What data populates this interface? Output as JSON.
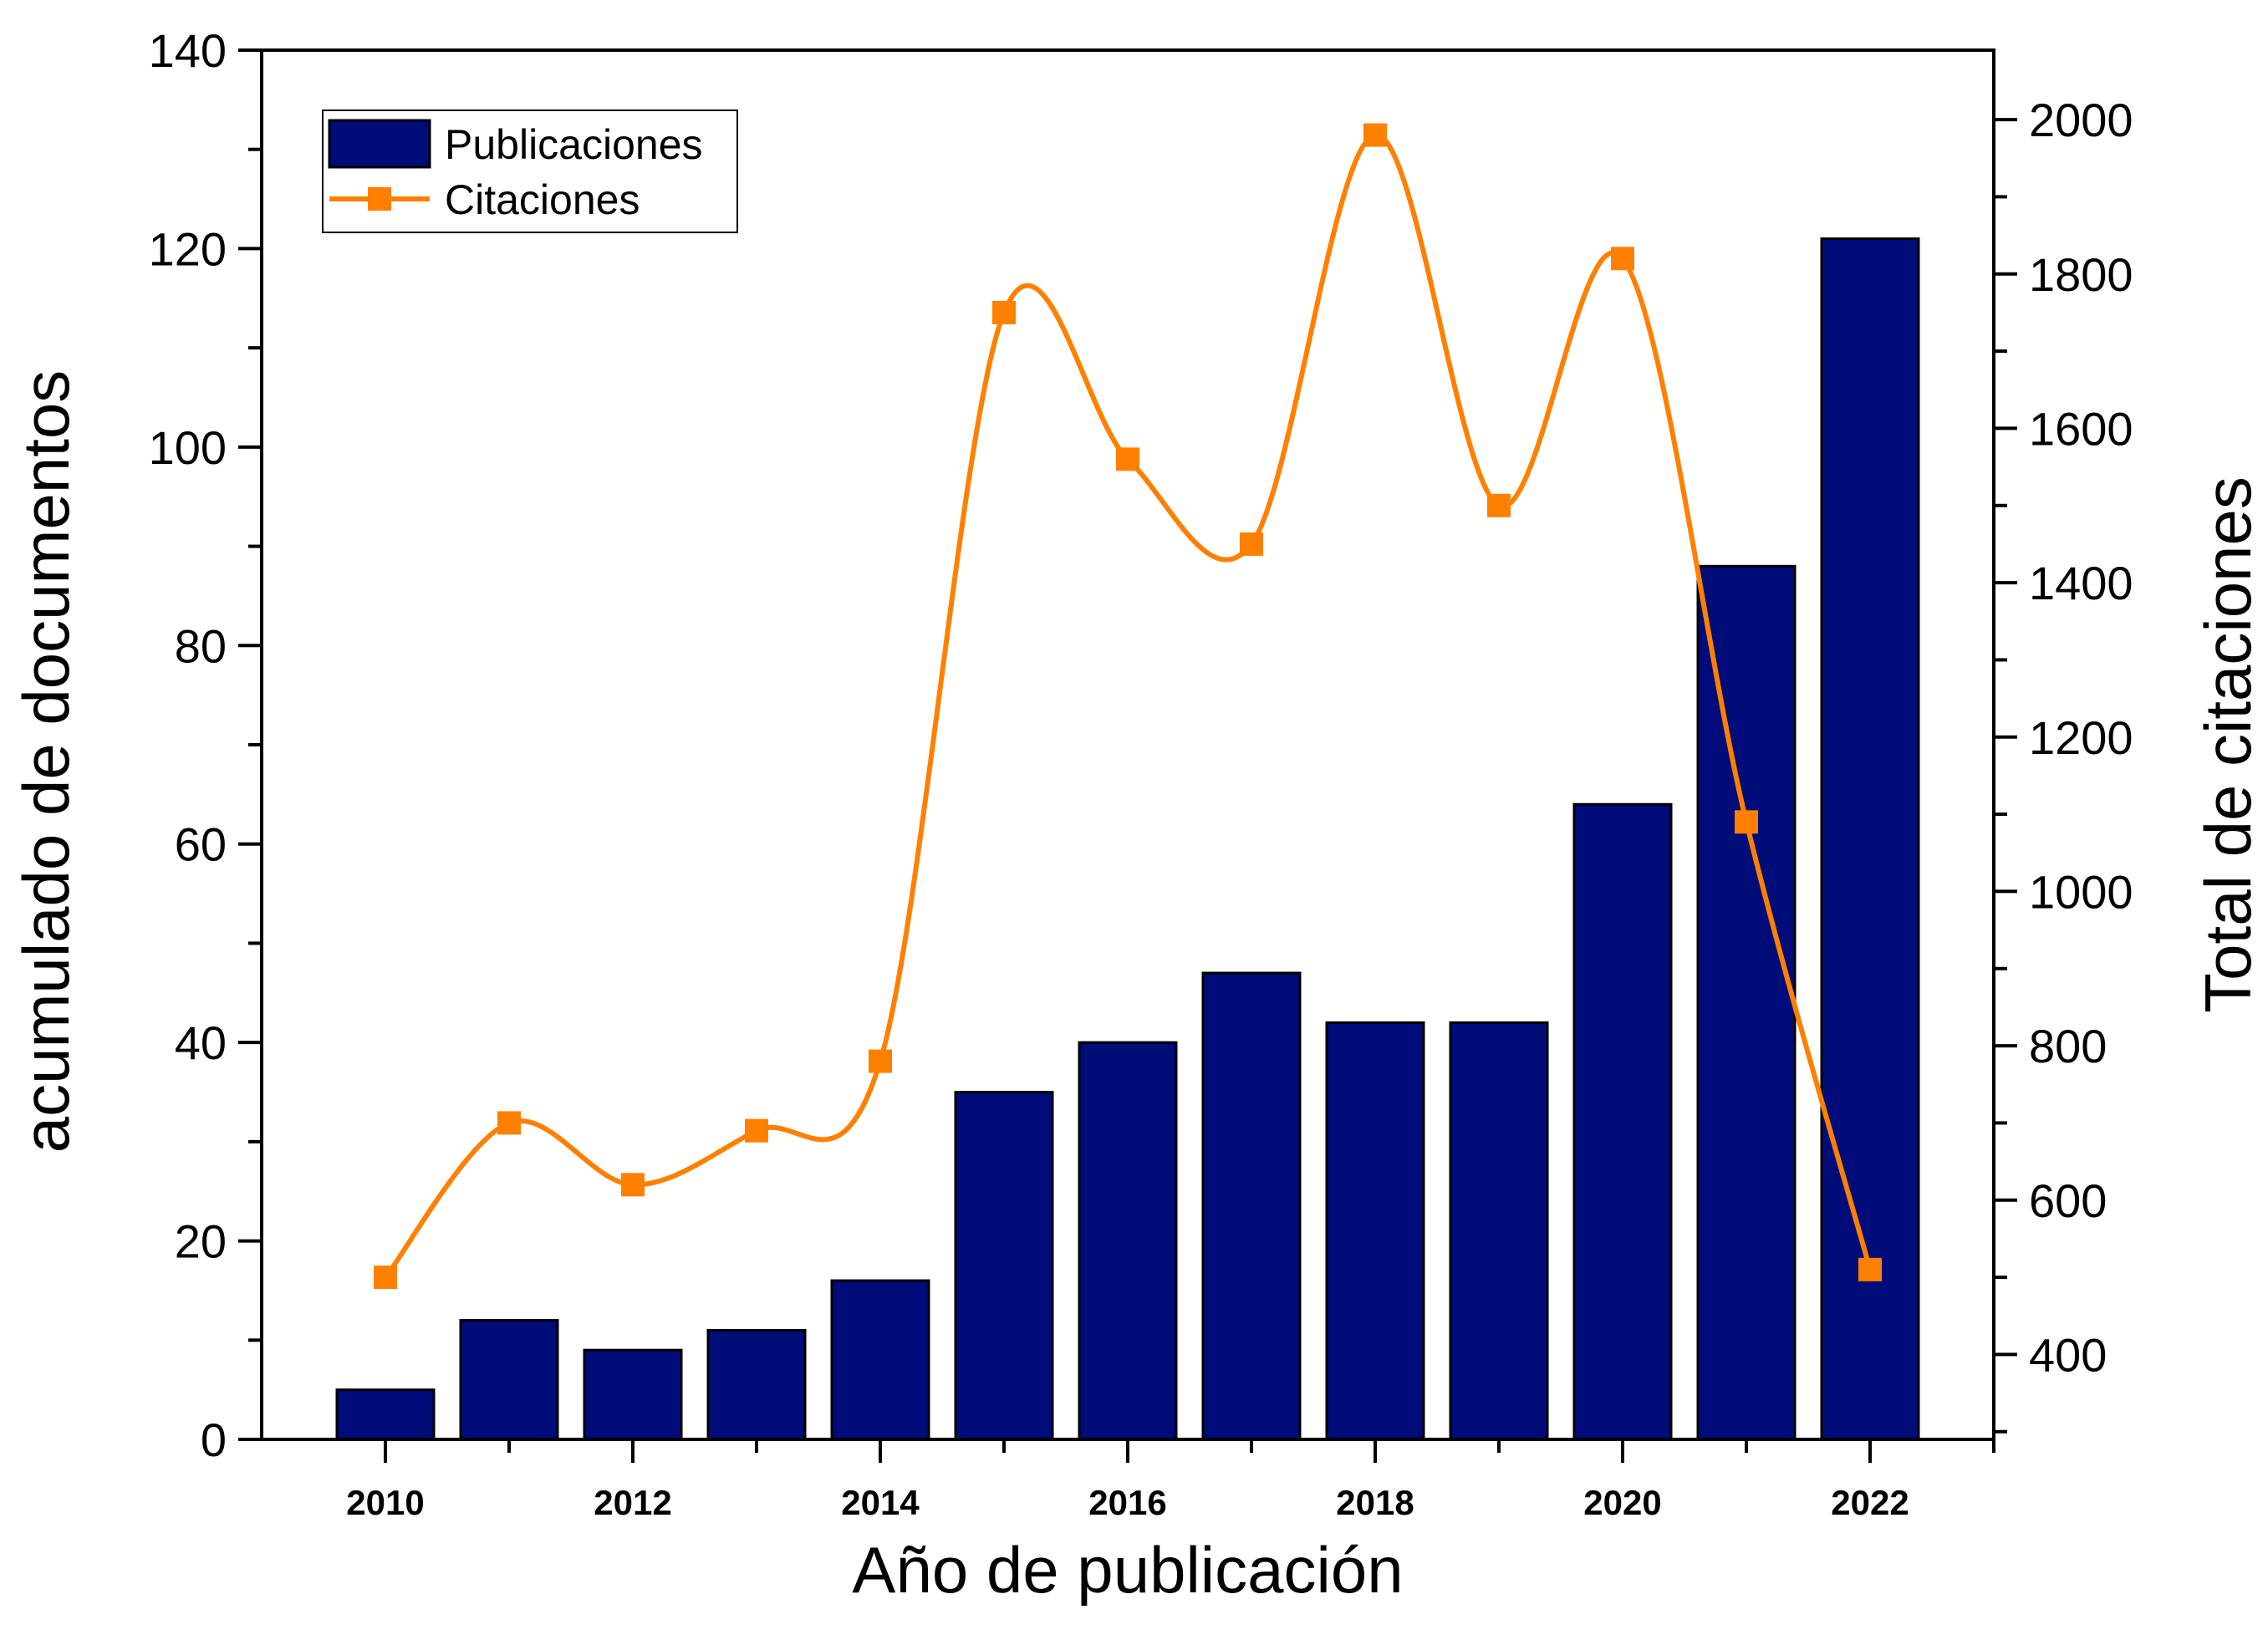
{
  "chart_data": {
    "type": "bar+line",
    "title": "",
    "xlabel": "Año de publicación",
    "ylabel_left": "acumulado de documentos",
    "ylabel_right": "Total de citaciones",
    "x_ticks": [
      "2010",
      "2012",
      "2014",
      "2016",
      "2018",
      "2020",
      "2022"
    ],
    "ylim_left": [
      0,
      140
    ],
    "yticks_left": [
      "0",
      "20",
      "40",
      "60",
      "80",
      "100",
      "120",
      "140"
    ],
    "ylim_right": [
      290,
      2090
    ],
    "yticks_right": [
      "400",
      "600",
      "800",
      "1000",
      "1200",
      "1400",
      "1600",
      "1800",
      "2000"
    ],
    "legend_position": "top-left",
    "x": [
      2010,
      2011,
      2012,
      2013,
      2014,
      2015,
      2016,
      2017,
      2018,
      2019,
      2020,
      2021,
      2022
    ],
    "series": [
      {
        "name": "Publicaciones",
        "type": "bar",
        "axis": "left",
        "color": "#000c7a",
        "values": [
          5,
          12,
          9,
          11,
          16,
          35,
          40,
          47,
          42,
          42,
          64,
          88,
          121
        ]
      },
      {
        "name": "Citaciones",
        "type": "line",
        "axis": "right",
        "color": "#ff8000",
        "values": [
          500,
          700,
          620,
          690,
          780,
          1750,
          1560,
          1450,
          1980,
          1500,
          1820,
          1090,
          510
        ]
      }
    ]
  }
}
